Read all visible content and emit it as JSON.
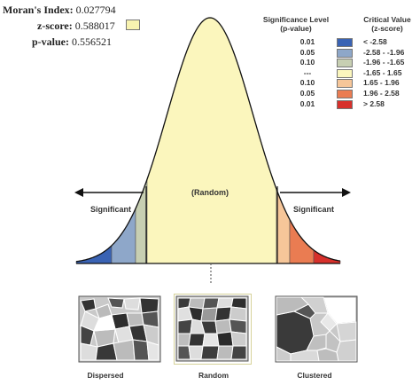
{
  "stats": {
    "morans_index_label": "Moran's Index:",
    "morans_index_value": "0.027794",
    "zscore_label": "z-score:",
    "zscore_value": "0.588017",
    "pvalue_label": "p-value:",
    "pvalue_value": "0.556521"
  },
  "legend": {
    "sig_header_line1": "Significance Level",
    "sig_header_line2": "(p-value)",
    "crit_header_line1": "Critical Value",
    "crit_header_line2": "(z-score)",
    "rows": [
      {
        "p": "0.01",
        "z": "< -2.58",
        "color": "#3a63b4"
      },
      {
        "p": "0.05",
        "z": "-2.58 - -1.96",
        "color": "#8ea7c9"
      },
      {
        "p": "0.10",
        "z": "-1.96 - -1.65",
        "color": "#c7cfb2"
      },
      {
        "p": "---",
        "z": "-1.65 - 1.65",
        "color": "#fbf6bd"
      },
      {
        "p": "0.10",
        "z": "1.65 - 1.96",
        "color": "#f6c699"
      },
      {
        "p": "0.05",
        "z": "1.96 - 2.58",
        "color": "#ea7c52"
      },
      {
        "p": "0.01",
        "z": "> 2.58",
        "color": "#d7302b"
      }
    ]
  },
  "curve": {
    "center_label": "(Random)",
    "left_label": "Significant",
    "right_label": "Significant",
    "zscore_marker_color": "#f8f3b0"
  },
  "patterns": [
    {
      "label": "Dispersed"
    },
    {
      "label": "Random"
    },
    {
      "label": "Clustered"
    }
  ]
}
